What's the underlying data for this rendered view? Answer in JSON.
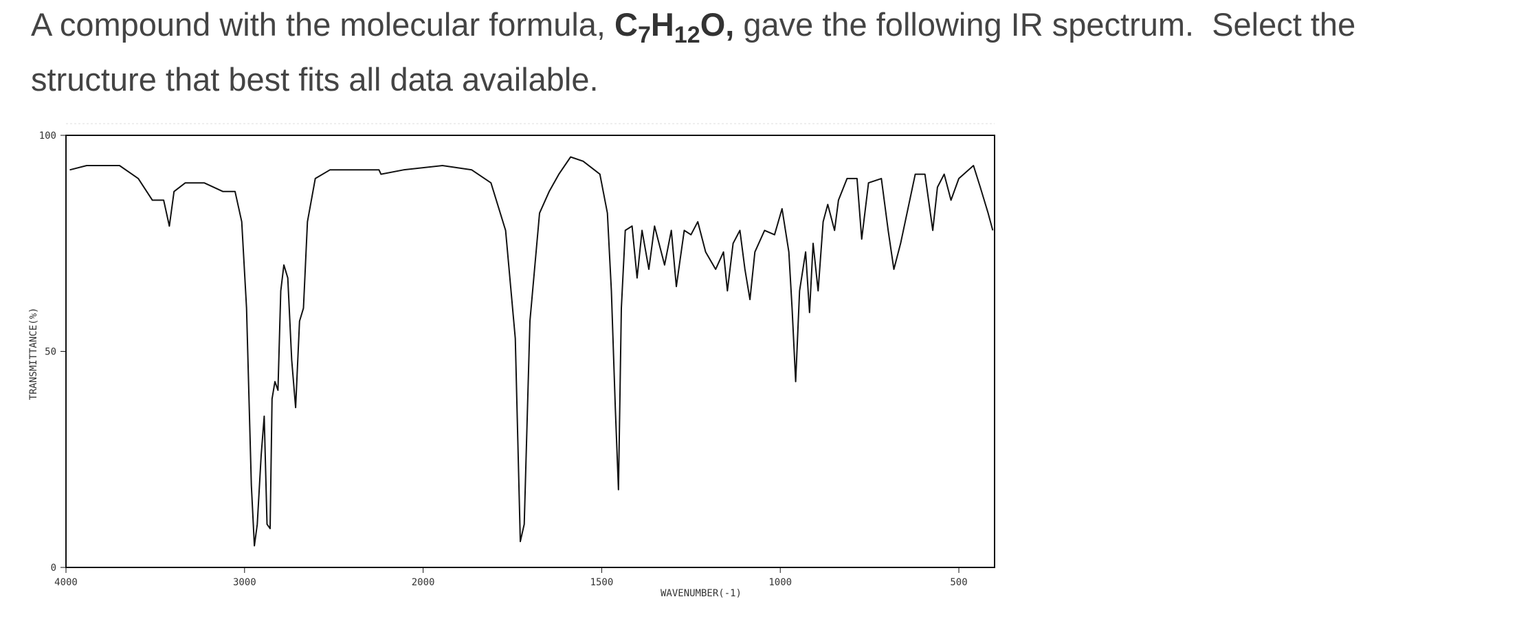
{
  "question": {
    "text_before": "A compound with the molecular formula, ",
    "formula": [
      "C",
      "7",
      "H",
      "12",
      "O,"
    ],
    "text_after": " gave the following IR spectrum.  Select the",
    "text_line2": "structure that best fits all data available."
  },
  "chart_data": {
    "type": "line",
    "xlabel": "WAVENUMBER(-1)",
    "ylabel": "TRANSMITTANCE(%)",
    "xlim": [
      4000,
      400
    ],
    "xticks": [
      4000,
      3000,
      2000,
      1500,
      1000,
      500
    ],
    "ylim": [
      0,
      100
    ],
    "yticks": [
      0,
      50,
      100
    ],
    "color": "#111111",
    "x": [
      3979,
      3884,
      3700,
      3595,
      3516,
      3453,
      3421,
      3395,
      3332,
      3226,
      3121,
      3053,
      3016,
      2989,
      2962,
      2945,
      2929,
      2907,
      2890,
      2874,
      2857,
      2846,
      2830,
      2813,
      2797,
      2780,
      2758,
      2736,
      2714,
      2692,
      2670,
      2648,
      2604,
      2522,
      2247,
      2236,
      2110,
      1946,
      1864,
      1810,
      1769,
      1742,
      1728,
      1717,
      1701,
      1674,
      1647,
      1620,
      1587,
      1552,
      1505,
      1484,
      1473,
      1462,
      1453,
      1445,
      1434,
      1415,
      1401,
      1387,
      1368,
      1352,
      1324,
      1305,
      1291,
      1269,
      1250,
      1231,
      1209,
      1181,
      1159,
      1148,
      1132,
      1113,
      1099,
      1085,
      1071,
      1044,
      1016,
      995,
      976,
      967,
      957,
      946,
      929,
      918,
      908,
      894,
      880,
      867,
      848,
      837,
      813,
      785,
      772,
      753,
      717,
      698,
      682,
      663,
      622,
      595,
      573,
      560,
      541,
      522,
      500,
      459,
      440,
      418,
      405
    ],
    "values": [
      92,
      93,
      93,
      90,
      85,
      85,
      79,
      87,
      89,
      89,
      87,
      87,
      80,
      60,
      19,
      5,
      10,
      26,
      35,
      10,
      9,
      39,
      43,
      41,
      64,
      70,
      67,
      48,
      37,
      57,
      60,
      80,
      90,
      92,
      92,
      91,
      92,
      93,
      92,
      89,
      78,
      53,
      6,
      10,
      57,
      82,
      87,
      91,
      95,
      94,
      91,
      82,
      64,
      37,
      18,
      60,
      78,
      79,
      67,
      78,
      69,
      79,
      70,
      78,
      65,
      78,
      77,
      80,
      73,
      69,
      73,
      64,
      75,
      78,
      69,
      62,
      73,
      78,
      77,
      83,
      73,
      60,
      43,
      64,
      73,
      59,
      75,
      64,
      80,
      84,
      78,
      85,
      90,
      90,
      76,
      89,
      90,
      78,
      69,
      75,
      91,
      91,
      78,
      88,
      91,
      85,
      90,
      93,
      88,
      82,
      78
    ]
  }
}
